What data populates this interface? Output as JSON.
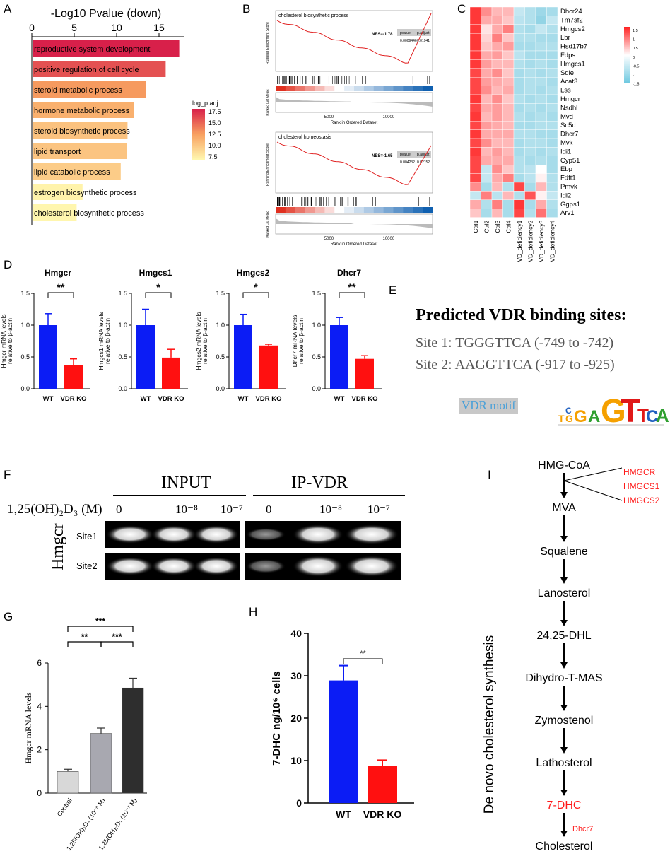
{
  "panel_labels": {
    "A": "A",
    "B": "B",
    "C": "C",
    "D": "D",
    "E": "E",
    "F": "F",
    "G": "G",
    "H": "H",
    "I": "I"
  },
  "colors": {
    "blue": "#0b1cf5",
    "red": "#ff1010",
    "grey_light": "#d8d8d8",
    "grey_mid": "#a8a8b0",
    "grey_dark": "#2e2e2e"
  },
  "panelA": {
    "chart_data": {
      "type": "bar",
      "orientation": "horizontal",
      "title": "-Log10 Pvalue (down)",
      "xticks": [
        "0",
        "5",
        "10",
        "15"
      ],
      "xlim": [
        0,
        17.5
      ],
      "categories": [
        "reproductive system development",
        "positive regulation of cell cycle",
        "steroid metabolic process",
        "hormone metabolic process",
        "steroid biosynthetic process",
        "lipid transport",
        "lipid catabolic process",
        "estrogen biosynthetic process",
        "cholesterol biosynthetic process"
      ],
      "values": [
        17.3,
        15.7,
        13.4,
        12.0,
        11.2,
        11.1,
        10.4,
        5.9,
        5.2
      ],
      "color_values": [
        17.5,
        15.5,
        12.5,
        11.3,
        10.2,
        10.1,
        9.6,
        7.3,
        7.1
      ],
      "legend": {
        "title": "log_p.adj",
        "ticks": [
          "17.5",
          "15.0",
          "12.5",
          "10.0",
          "7.5"
        ]
      }
    }
  },
  "panelB": {
    "chart_data": [
      {
        "type": "line",
        "title": "cholesterol biosynthetic process",
        "nes": "NES=-1.78",
        "stat_headers": [
          "pvalue",
          "p.adjust"
        ],
        "stat_values": [
          "0.0009446",
          "0.01941"
        ],
        "ylabel": "Running Enrichment Score",
        "ylabel2": "Ranked List Metric",
        "xlabel": "Rank in Ordered Dataset",
        "xticks": [
          "5000",
          "10000"
        ]
      },
      {
        "type": "line",
        "title": "cholesterol homeostasis",
        "nes": "NES=-1.65",
        "stat_headers": [
          "pvalue",
          "p.adjust"
        ],
        "stat_values": [
          "0.004232",
          "0.02152"
        ],
        "ylabel": "Running Enrichment Score",
        "ylabel2": "Ranked List Metric",
        "xlabel": "Rank in Ordered Dataset",
        "xticks": [
          "5000",
          "10000"
        ]
      }
    ]
  },
  "panelC": {
    "chart_data": {
      "type": "heatmap",
      "rows": [
        "Dhcr24",
        "Tm7sf2",
        "Hmgcs2",
        "Lbr",
        "Hsd17b7",
        "Fdps",
        "Hmgcs1",
        "Sqle",
        "Acat3",
        "Lss",
        "Hmgcr",
        "Nsdhl",
        "Mvd",
        "Sc5d",
        "Dhcr7",
        "Mvk",
        "Idi1",
        "Cyp51",
        "Ebp",
        "Fdft1",
        "Pmvk",
        "Idi2",
        "Ggps1",
        "Arv1"
      ],
      "columns": [
        "Ctrl1",
        "Ctrl2",
        "Ctrl3",
        "Ctrl4",
        "VD_deficiency1",
        "VD_deficiency2",
        "VD_deficiency3",
        "VD_deficiency4"
      ],
      "legend_ticks": [
        "1.5",
        "1",
        "0.5",
        "0",
        "-0.5",
        "-1",
        "-1.5"
      ],
      "values": [
        [
          1.4,
          0.8,
          0.5,
          0.5,
          -0.6,
          -0.8,
          -1.0,
          -0.9
        ],
        [
          1.4,
          0.6,
          0.6,
          0.4,
          -0.7,
          -0.8,
          -1.1,
          -0.6
        ],
        [
          1.4,
          0.2,
          0.6,
          0.9,
          -0.8,
          -0.9,
          -0.6,
          -0.8
        ],
        [
          1.4,
          0.3,
          0.9,
          0.4,
          -0.8,
          -0.8,
          -0.9,
          -0.9
        ],
        [
          1.4,
          0.4,
          0.6,
          0.7,
          -0.9,
          -0.9,
          -0.8,
          -0.8
        ],
        [
          1.4,
          0.6,
          0.7,
          0.4,
          -0.7,
          -0.9,
          -0.9,
          -0.9
        ],
        [
          1.4,
          0.7,
          0.5,
          0.5,
          -0.8,
          -0.9,
          -0.8,
          -0.9
        ],
        [
          1.3,
          0.6,
          0.8,
          0.4,
          -0.9,
          -0.8,
          -0.9,
          -0.8
        ],
        [
          1.3,
          0.7,
          0.6,
          0.5,
          -0.9,
          -0.8,
          -0.8,
          -0.9
        ],
        [
          1.3,
          0.8,
          0.5,
          0.6,
          -0.9,
          -0.8,
          -0.9,
          -0.8
        ],
        [
          1.4,
          0.5,
          0.8,
          0.4,
          -0.8,
          -0.9,
          -0.8,
          -0.9
        ],
        [
          1.3,
          0.6,
          0.7,
          0.5,
          -0.9,
          -0.8,
          -0.9,
          -0.8
        ],
        [
          1.4,
          0.5,
          0.7,
          0.5,
          -0.8,
          -0.9,
          -0.8,
          -0.9
        ],
        [
          1.3,
          0.7,
          0.6,
          0.5,
          -0.9,
          -0.9,
          -0.8,
          -0.8
        ],
        [
          1.4,
          0.6,
          0.6,
          0.6,
          -0.8,
          -0.8,
          -0.9,
          -0.9
        ],
        [
          1.3,
          0.8,
          0.5,
          0.5,
          -0.9,
          -0.8,
          -0.8,
          -0.9
        ],
        [
          1.4,
          0.5,
          0.7,
          0.5,
          -0.9,
          -0.8,
          -0.9,
          -0.8
        ],
        [
          1.3,
          0.6,
          0.6,
          0.6,
          -0.8,
          -0.9,
          -0.8,
          -0.9
        ],
        [
          1.3,
          -0.6,
          0.8,
          0.4,
          -0.8,
          -0.7,
          0.0,
          -0.9
        ],
        [
          1.3,
          -0.6,
          0.6,
          0.9,
          -0.9,
          -0.7,
          0.1,
          -0.8
        ],
        [
          0.8,
          -0.9,
          0.5,
          -0.8,
          1.3,
          -0.9,
          0.5,
          -0.8
        ],
        [
          -0.6,
          0.9,
          -0.7,
          0.5,
          -0.8,
          1.2,
          0.1,
          -0.6
        ],
        [
          0.6,
          -0.8,
          0.9,
          -0.9,
          1.4,
          -0.9,
          0.6,
          -0.8
        ],
        [
          0.4,
          -0.9,
          0.5,
          -0.9,
          1.3,
          -0.8,
          1.0,
          -0.9
        ]
      ]
    }
  },
  "panelD": {
    "chart_data": [
      {
        "type": "bar",
        "title": "Hmgcr",
        "ylabel": "Hmgcr mRNA levels relative to β-actin",
        "categories": [
          "WT",
          "VDR KO"
        ],
        "values": [
          1.0,
          0.37
        ],
        "errors": [
          0.18,
          0.1
        ],
        "ylim": [
          0,
          1.5
        ],
        "yticks": [
          "0.0",
          "0.5",
          "1.0",
          "1.5"
        ],
        "sig": "**"
      },
      {
        "type": "bar",
        "title": "Hmgcs1",
        "ylabel": "Hmgcs1 mRNA levels relative to β-actin",
        "categories": [
          "WT",
          "VDR KO"
        ],
        "values": [
          1.0,
          0.49
        ],
        "errors": [
          0.25,
          0.13
        ],
        "ylim": [
          0,
          1.5
        ],
        "yticks": [
          "0.0",
          "0.5",
          "1.0",
          "1.5"
        ],
        "sig": "*"
      },
      {
        "type": "bar",
        "title": "Hmgcs2",
        "ylabel": "Hmgcs2 mRNA levels relative to β-actin",
        "categories": [
          "WT",
          "VDR KO"
        ],
        "values": [
          1.0,
          0.68
        ],
        "errors": [
          0.17,
          0.02
        ],
        "ylim": [
          0,
          1.5
        ],
        "yticks": [
          "0.0",
          "0.5",
          "1.0",
          "1.5"
        ],
        "sig": "*"
      },
      {
        "type": "bar",
        "title": "Dhcr7",
        "ylabel": "Dhcr7 mRNA levels relative to β-actin",
        "categories": [
          "WT",
          "VDR KO"
        ],
        "values": [
          1.0,
          0.47
        ],
        "errors": [
          0.12,
          0.05
        ],
        "ylim": [
          0,
          1.5
        ],
        "yticks": [
          "0.0",
          "0.5",
          "1.0",
          "1.5"
        ],
        "sig": "**"
      }
    ]
  },
  "panelE": {
    "title": "Predicted VDR binding sites:",
    "site1": "Site 1: TGGGTTCA (-749 to -742)",
    "site2": "Site 2: AAGGTTCA (-917 to -925)",
    "motif_label": "VDR motif"
  },
  "panelF": {
    "group_input": "INPUT",
    "group_ip": "IP-VDR",
    "treatment_label": "1,25(OH)₂D₃ (M)",
    "conc": [
      "0",
      "10⁻⁸",
      "10⁻⁷"
    ],
    "gene": "Hmgcr",
    "sites": [
      "Site1",
      "Site2"
    ]
  },
  "panelG": {
    "chart_data": {
      "type": "bar",
      "ylabel": "Hmgcr mRNA levels",
      "categories": [
        "Control",
        "1,25(OH)₂D₃ (10⁻⁸ M)",
        "1,25(OH)₂D₃ (10⁻⁷ M)"
      ],
      "values": [
        1.0,
        2.75,
        4.85
      ],
      "errors": [
        0.1,
        0.25,
        0.45
      ],
      "ylim": [
        0,
        6
      ],
      "yticks": [
        "0",
        "2",
        "4",
        "6"
      ],
      "sig": [
        {
          "pair": [
            0,
            1
          ],
          "label": "**"
        },
        {
          "pair": [
            1,
            2
          ],
          "label": "***"
        },
        {
          "pair": [
            0,
            2
          ],
          "label": "***"
        }
      ]
    }
  },
  "panelH": {
    "chart_data": {
      "type": "bar",
      "ylabel": "7-DHC ng/10⁶ cells",
      "categories": [
        "WT",
        "VDR KO"
      ],
      "values": [
        28.9,
        8.8
      ],
      "errors": [
        3.5,
        1.3
      ],
      "ylim": [
        0,
        40
      ],
      "yticks": [
        "0",
        "10",
        "20",
        "30",
        "40"
      ],
      "sig": "**"
    }
  },
  "panelI": {
    "vertical_title": "De novo cholesterol synthesis",
    "steps": [
      "HMG-CoA",
      "MVA",
      "Squalene",
      "Lanosterol",
      "24,25-DHL",
      "Dihydro-T-MAS",
      "Zymostenol",
      "Lathosterol",
      "7-DHC",
      "Cholesterol"
    ],
    "enzymes_top": [
      "HMGCR",
      "HMGCS1",
      "HMGCS2"
    ],
    "enzyme_last": "Dhcr7"
  }
}
